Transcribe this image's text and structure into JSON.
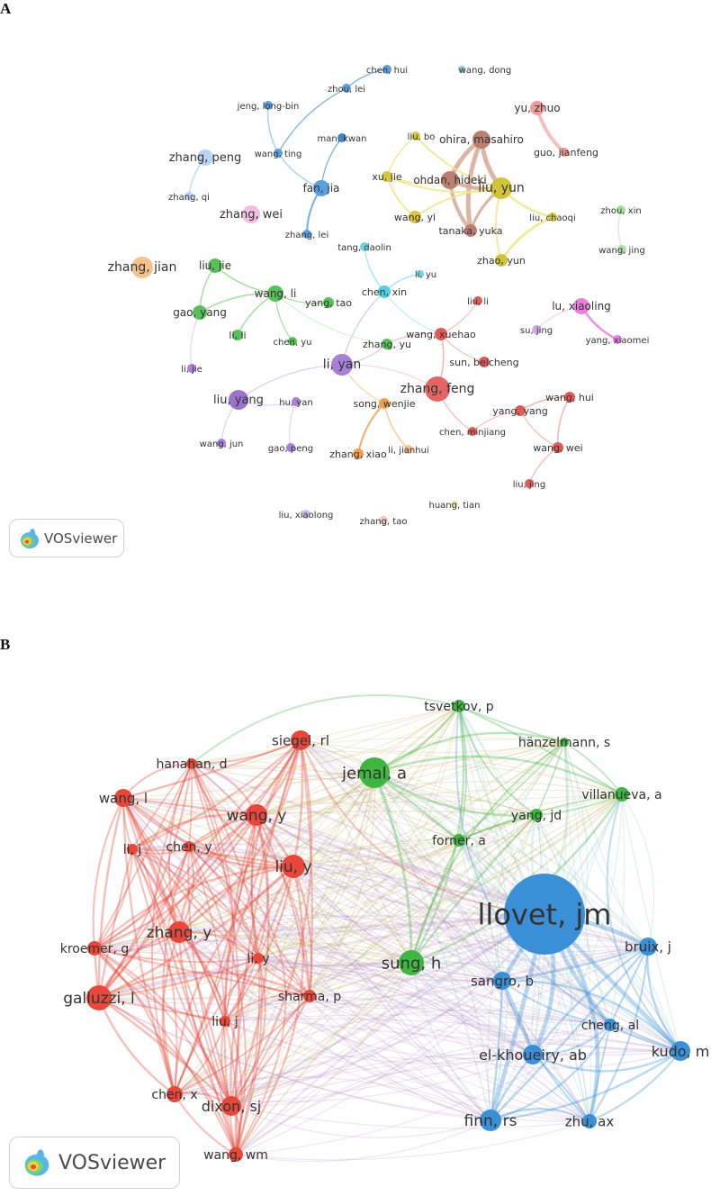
{
  "panels": {
    "a": {
      "letter": "A",
      "watermark": "VOSviewer",
      "nodes": [
        {
          "label": "chen, hui",
          "color": "#5b9fe0"
        },
        {
          "label": "wang, dong",
          "color": "#8ad0e6"
        },
        {
          "label": "zhou, lei",
          "color": "#5b9fe0"
        },
        {
          "label": "jeng, long-bin",
          "color": "#5b9fe0"
        },
        {
          "label": "man, kwan",
          "color": "#3f86cf"
        },
        {
          "label": "wang, ting",
          "color": "#5b9fe0"
        },
        {
          "label": "yu, zhuo",
          "color": "#f09a9a"
        },
        {
          "label": "zhang, peng",
          "color": "#b9d4f3"
        },
        {
          "label": "fan, jia",
          "color": "#5b9fe0"
        },
        {
          "label": "liu, bo",
          "color": "#d8c640"
        },
        {
          "label": "ohira, masahiro",
          "color": "#bb7f6f"
        },
        {
          "label": "guo, jianfeng",
          "color": "#f09a9a"
        },
        {
          "label": "zhang, qi",
          "color": "#b9d4f3"
        },
        {
          "label": "xu, jie",
          "color": "#d8c640"
        },
        {
          "label": "ohdan, hideki",
          "color": "#bb7f6f"
        },
        {
          "label": "liu, yun",
          "color": "#cfc53a"
        },
        {
          "label": "zhang, wei",
          "color": "#f1bde0"
        },
        {
          "label": "wang, yi",
          "color": "#d8c640"
        },
        {
          "label": "liu, chaoqi",
          "color": "#d8c640"
        },
        {
          "label": "zhou, xin",
          "color": "#a8e0a0"
        },
        {
          "label": "zhang, lei",
          "color": "#5b9fe0"
        },
        {
          "label": "tanaka, yuka",
          "color": "#bb7f6f"
        },
        {
          "label": "tang, daolin",
          "color": "#6fd3e5"
        },
        {
          "label": "wang, jing",
          "color": "#a8e0a0"
        },
        {
          "label": "zhang, jian",
          "color": "#f5c28e"
        },
        {
          "label": "liu, jie",
          "color": "#58c058"
        },
        {
          "label": "zhao, yun",
          "color": "#cfc53a"
        },
        {
          "label": "li, yu",
          "color": "#6fd3e5"
        },
        {
          "label": "wang, li",
          "color": "#58c058"
        },
        {
          "label": "chen, xin",
          "color": "#4fcfe0"
        },
        {
          "label": "liu, li",
          "color": "#e05a5a"
        },
        {
          "label": "yang, tao",
          "color": "#58c058"
        },
        {
          "label": "lu, xiaoling",
          "color": "#ea7fe0"
        },
        {
          "label": "gao, yang",
          "color": "#58c058"
        },
        {
          "label": "li, li",
          "color": "#58c058"
        },
        {
          "label": "chen, yu",
          "color": "#58c058"
        },
        {
          "label": "wang, xuehao",
          "color": "#e05a5a"
        },
        {
          "label": "zhang, yu",
          "color": "#58c058"
        },
        {
          "label": "su, jing",
          "color": "#d7a8e8"
        },
        {
          "label": "yang, xiaomei",
          "color": "#ea7fe0"
        },
        {
          "label": "li, yan",
          "color": "#a97fd8"
        },
        {
          "label": "sun, beicheng",
          "color": "#e05a5a"
        },
        {
          "label": "li, jie",
          "color": "#a97fd8"
        },
        {
          "label": "zhang, feng",
          "color": "#e56565"
        },
        {
          "label": "liu, yang",
          "color": "#9b73cf"
        },
        {
          "label": "hu, yan",
          "color": "#a97fd8"
        },
        {
          "label": "song, wenjie",
          "color": "#f2a050"
        },
        {
          "label": "wang, hui",
          "color": "#e05a5a"
        },
        {
          "label": "yang, yang",
          "color": "#e05a5a"
        },
        {
          "label": "chen, minjiang",
          "color": "#e05a5a"
        },
        {
          "label": "wang, jun",
          "color": "#a97fd8"
        },
        {
          "label": "gao, peng",
          "color": "#a97fd8"
        },
        {
          "label": "zhang, xiao",
          "color": "#f2a050"
        },
        {
          "label": "li, jianhui",
          "color": "#f5c28e"
        },
        {
          "label": "wang, wei",
          "color": "#e05a5a"
        },
        {
          "label": "liu, jing",
          "color": "#e05a5a"
        },
        {
          "label": "huang, tian",
          "color": "#e8e3a8"
        },
        {
          "label": "liu, xiaolong",
          "color": "#cdbde8"
        },
        {
          "label": "zhang, tao",
          "color": "#f0c6c6"
        }
      ]
    },
    "b": {
      "letter": "B",
      "watermark": "VOSviewer",
      "clusters": {
        "red": "#e8473a",
        "green": "#3fb542",
        "blue": "#3a8fd6"
      },
      "nodes": [
        {
          "label": "tsvetkov, p",
          "cluster": "green"
        },
        {
          "label": "siegel, rl",
          "cluster": "red"
        },
        {
          "label": "hänzelmann, s",
          "cluster": "green"
        },
        {
          "label": "hanahan, d",
          "cluster": "red"
        },
        {
          "label": "jemal, a",
          "cluster": "green"
        },
        {
          "label": "villanueva, a",
          "cluster": "green"
        },
        {
          "label": "wang, l",
          "cluster": "red"
        },
        {
          "label": "wang, y",
          "cluster": "red"
        },
        {
          "label": "yang, jd",
          "cluster": "green"
        },
        {
          "label": "li, j",
          "cluster": "red"
        },
        {
          "label": "chen, y",
          "cluster": "red"
        },
        {
          "label": "forner, a",
          "cluster": "green"
        },
        {
          "label": "liu, y",
          "cluster": "red"
        },
        {
          "label": "llovet, jm",
          "cluster": "blue"
        },
        {
          "label": "zhang, y",
          "cluster": "red"
        },
        {
          "label": "li, y",
          "cluster": "red"
        },
        {
          "label": "kroemer, g",
          "cluster": "red"
        },
        {
          "label": "bruix, j",
          "cluster": "blue"
        },
        {
          "label": "sung, h",
          "cluster": "green"
        },
        {
          "label": "sangro, b",
          "cluster": "blue"
        },
        {
          "label": "galluzzi, l",
          "cluster": "red"
        },
        {
          "label": "sharma, p",
          "cluster": "red"
        },
        {
          "label": "liu, j",
          "cluster": "red"
        },
        {
          "label": "cheng, al",
          "cluster": "blue"
        },
        {
          "label": "kudo, m",
          "cluster": "blue"
        },
        {
          "label": "el-khoueiry, ab",
          "cluster": "blue"
        },
        {
          "label": "chen, x",
          "cluster": "red"
        },
        {
          "label": "dixon, sj",
          "cluster": "red"
        },
        {
          "label": "finn, rs",
          "cluster": "blue"
        },
        {
          "label": "zhu, ax",
          "cluster": "blue"
        },
        {
          "label": "wang, wm",
          "cluster": "red"
        }
      ]
    }
  }
}
